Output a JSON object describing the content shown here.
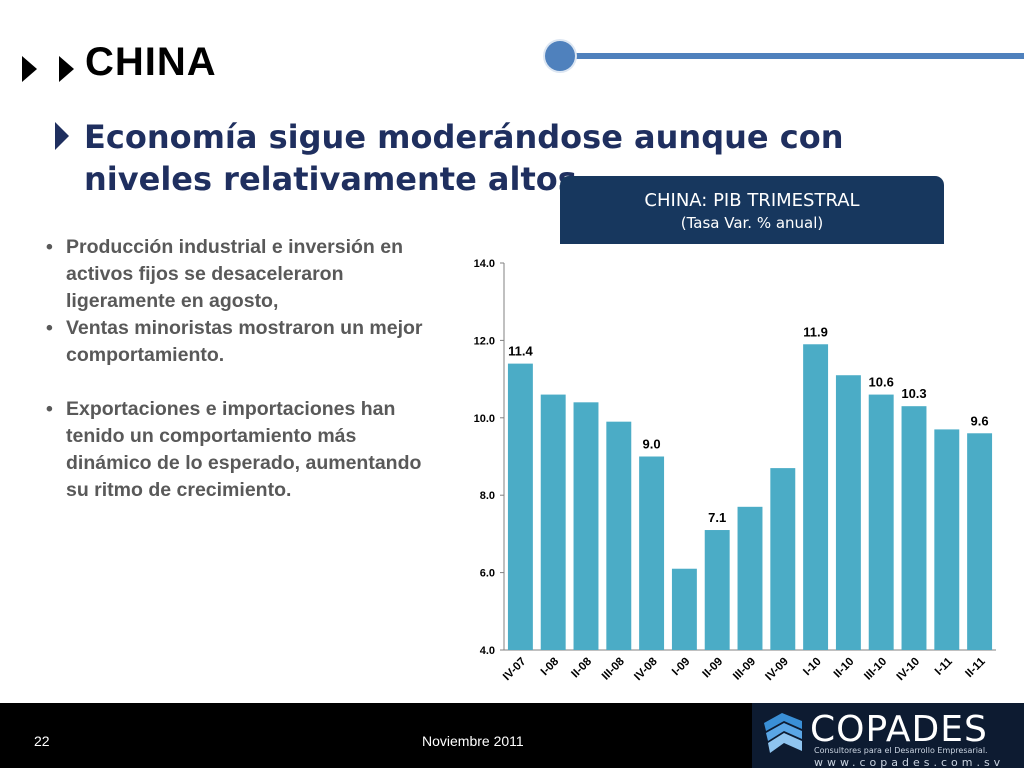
{
  "header": {
    "title": "CHINA"
  },
  "subtitle": "Economía sigue moderándose aunque con niveles relativamente altos",
  "chart_box": {
    "title": "CHINA: PIB TRIMESTRAL",
    "subtitle": "(Tasa Var. % anual)"
  },
  "bullets": [
    {
      "marker": "•",
      "text": "Producción industrial e inversión en activos fijos se desaceleraron ligeramente en agosto,"
    },
    {
      "marker": "•",
      "text": "Ventas minoristas mostraron un mejor comportamiento."
    },
    {
      "marker": "•",
      "text": "Exportaciones e importaciones han tenido un comportamiento más dinámico de lo esperado, aumentando su ritmo de crecimiento."
    }
  ],
  "chart_data": {
    "type": "bar",
    "title": "CHINA: PIB TRIMESTRAL",
    "subtitle": "(Tasa Var. % anual)",
    "xlabel": "",
    "ylabel": "",
    "categories": [
      "IV-07",
      "I-08",
      "II-08",
      "III-08",
      "IV-08",
      "I-09",
      "II-09",
      "III-09",
      "IV-09",
      "I-10",
      "II-10",
      "III-10",
      "IV-10",
      "I-11",
      "II-11"
    ],
    "values": [
      11.4,
      10.6,
      10.4,
      9.9,
      9.0,
      6.1,
      7.1,
      7.7,
      8.7,
      11.9,
      11.1,
      10.6,
      10.3,
      9.7,
      9.6
    ],
    "data_labels": [
      "11.4",
      "",
      "",
      "",
      "9.0",
      "",
      "7.1",
      "",
      "",
      "11.9",
      "",
      "10.6",
      "10.3",
      "",
      "9.6"
    ],
    "ylim": [
      4.0,
      14.0
    ],
    "yticks": [
      "4.0",
      "6.0",
      "8.0",
      "10.0",
      "12.0",
      "14.0"
    ],
    "grid": false,
    "colors": {
      "bar": "#4bacc6",
      "axis": "#808080"
    }
  },
  "footer": {
    "page_number": "22",
    "date": "Noviembre 2011"
  },
  "logo": {
    "name": "COPADES",
    "tagline": "Consultores para el Desarrollo Empresarial.",
    "web": "www.copades.com.sv"
  }
}
